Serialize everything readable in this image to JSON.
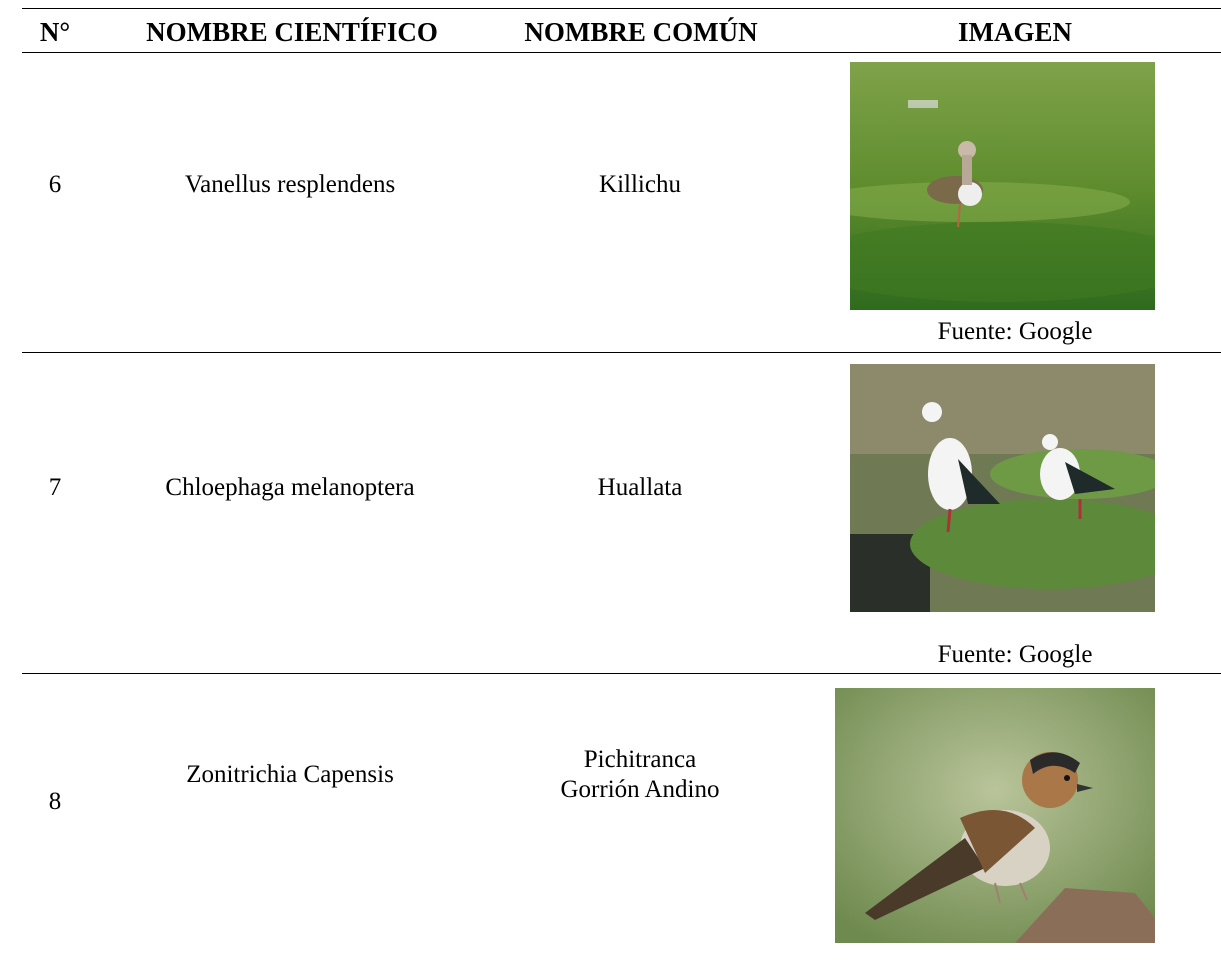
{
  "table": {
    "header": [
      "N°",
      "NOMBRE CIENTÍFICO",
      "NOMBRE COMÚN",
      "IMAGEN"
    ],
    "rows": [
      {
        "number": "6",
        "scientific_name": "Vanellus resplendens",
        "common_name": [
          "Killichu"
        ],
        "source": "Fuente: Google"
      },
      {
        "number": "7",
        "scientific_name": "Chloephaga melanoptera",
        "common_name": [
          "Huallata"
        ],
        "source": "Fuente: Google"
      },
      {
        "number": "8",
        "scientific_name": "Zonitrichia Capensis",
        "common_name": [
          "Pichitranca",
          "Gorrión Andino"
        ]
      }
    ]
  }
}
